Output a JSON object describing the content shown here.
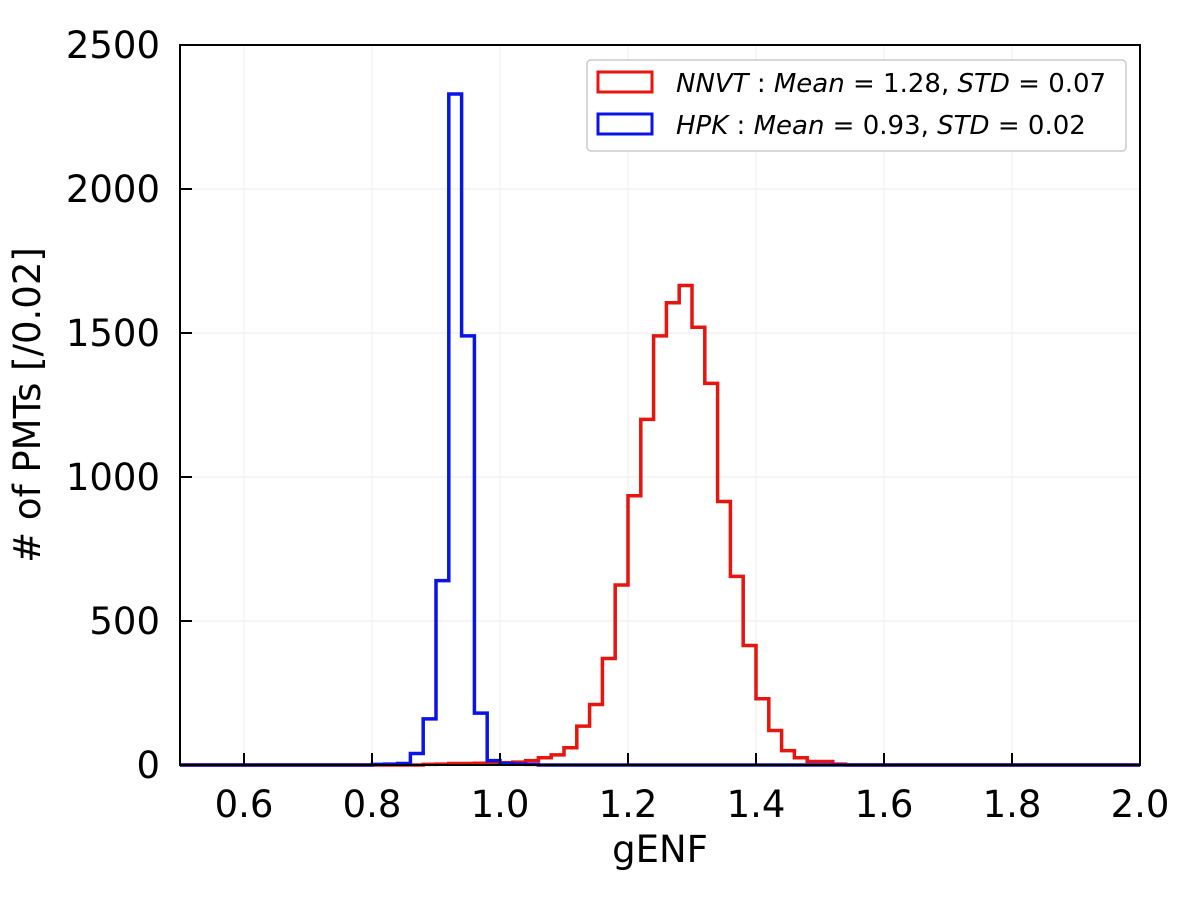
{
  "chart_data": {
    "type": "histogram",
    "title": "",
    "xlabel": "gENF",
    "ylabel": "# of PMTs [/0.02]",
    "xlim": [
      0.5,
      2.0
    ],
    "ylim": [
      0,
      2500
    ],
    "xticks": [
      "0.6",
      "0.8",
      "1.0",
      "1.2",
      "1.4",
      "1.6",
      "1.8",
      "2.0"
    ],
    "yticks": [
      "0",
      "500",
      "1000",
      "1500",
      "2000",
      "2500"
    ],
    "grid": true,
    "legend_position": "top-right",
    "bin_width": 0.02,
    "series": [
      {
        "name": "NNVT",
        "mean_label": "Mean",
        "mean_value": "1.28",
        "std_label": "STD",
        "std_value": "0.07",
        "color": "#e8140e",
        "bins": [
          [
            0.86,
            0
          ],
          [
            0.88,
            2
          ],
          [
            0.9,
            3
          ],
          [
            0.92,
            5
          ],
          [
            0.94,
            5
          ],
          [
            0.96,
            6
          ],
          [
            0.98,
            7
          ],
          [
            1.0,
            8
          ],
          [
            1.02,
            10
          ],
          [
            1.04,
            15
          ],
          [
            1.06,
            25
          ],
          [
            1.08,
            35
          ],
          [
            1.1,
            60
          ],
          [
            1.12,
            135
          ],
          [
            1.14,
            210
          ],
          [
            1.16,
            370
          ],
          [
            1.18,
            625
          ],
          [
            1.2,
            935
          ],
          [
            1.22,
            1200
          ],
          [
            1.24,
            1490
          ],
          [
            1.26,
            1605
          ],
          [
            1.28,
            1665
          ],
          [
            1.3,
            1520
          ],
          [
            1.32,
            1325
          ],
          [
            1.34,
            915
          ],
          [
            1.36,
            655
          ],
          [
            1.38,
            415
          ],
          [
            1.4,
            230
          ],
          [
            1.42,
            120
          ],
          [
            1.44,
            50
          ],
          [
            1.46,
            25
          ],
          [
            1.48,
            12
          ],
          [
            1.5,
            12
          ],
          [
            1.52,
            3
          ],
          [
            1.54,
            0
          ]
        ]
      },
      {
        "name": "HPK",
        "mean_label": "Mean",
        "mean_value": "0.93",
        "std_label": "STD",
        "std_value": "0.02",
        "color": "#0a14e6",
        "bins": [
          [
            0.8,
            2
          ],
          [
            0.82,
            3
          ],
          [
            0.84,
            5
          ],
          [
            0.86,
            40
          ],
          [
            0.88,
            160
          ],
          [
            0.9,
            640
          ],
          [
            0.92,
            2330
          ],
          [
            0.94,
            1490
          ],
          [
            0.96,
            180
          ],
          [
            0.98,
            15
          ],
          [
            1.0,
            5
          ],
          [
            1.02,
            3
          ],
          [
            1.04,
            2
          ],
          [
            1.06,
            0
          ]
        ]
      }
    ]
  }
}
